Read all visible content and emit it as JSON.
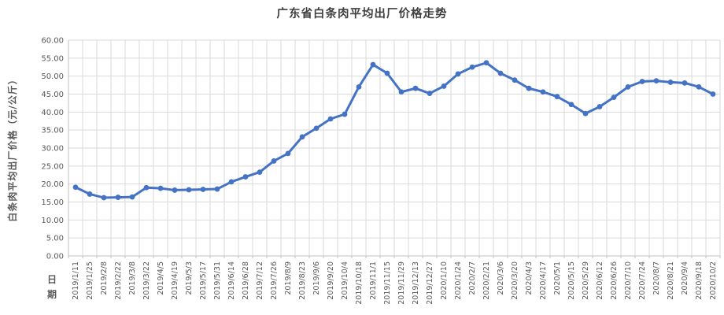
{
  "chart_data": {
    "type": "line",
    "title": "广东省白条肉平均出厂价格走势",
    "ylabel": "白条肉平均出厂价格（元/公斤）",
    "xlabel": "日期",
    "legend_position": "none",
    "grid": true,
    "ylim": [
      0,
      60
    ],
    "y_tick_step": 5,
    "y_tick_labels": [
      "0.00",
      "5.00",
      "10.00",
      "15.00",
      "20.00",
      "25.00",
      "30.00",
      "35.00",
      "40.00",
      "45.00",
      "50.00",
      "55.00",
      "60.00"
    ],
    "categories": [
      "2019/1/11",
      "2019/1/25",
      "2019/2/8",
      "2019/2/22",
      "2019/3/8",
      "2019/3/22",
      "2019/4/5",
      "2019/4/19",
      "2019/5/3",
      "2019/5/17",
      "2019/5/31",
      "2019/6/14",
      "2019/6/28",
      "2019/7/12",
      "2019/7/26",
      "2019/8/9",
      "2019/8/23",
      "2019/9/6",
      "2019/9/20",
      "2019/10/4",
      "2019/10/18",
      "2019/11/1",
      "2019/11/15",
      "2019/11/29",
      "2019/12/13",
      "2019/12/27",
      "2020/1/10",
      "2020/1/24",
      "2020/2/7",
      "2020/2/21",
      "2020/3/6",
      "2020/3/20",
      "2020/4/3",
      "2020/4/17",
      "2020/5/1",
      "2020/5/15",
      "2020/5/29",
      "2020/6/12",
      "2020/6/26",
      "2020/7/10",
      "2020/7/24",
      "2020/8/7",
      "2020/8/21",
      "2020/9/4",
      "2020/9/18",
      "2020/10/2"
    ],
    "values": [
      19.1,
      17.2,
      16.2,
      16.3,
      16.4,
      19.0,
      18.8,
      18.3,
      18.4,
      18.5,
      18.6,
      20.6,
      22.0,
      23.3,
      26.4,
      28.5,
      33.1,
      35.5,
      38.1,
      39.4,
      47.0,
      53.2,
      50.8,
      45.6,
      46.6,
      45.2,
      47.2,
      50.6,
      52.5,
      53.7,
      50.8,
      48.9,
      46.6,
      45.6,
      44.3,
      42.1,
      39.6,
      41.5,
      44.1,
      47.0,
      48.5,
      48.7,
      48.3,
      48.1,
      47.0,
      45.0
    ],
    "colors": {
      "line": "#4472C4",
      "marker": "#4472C4",
      "gridline": "#D9D9D9",
      "axis": "#BFBFBF",
      "tick_label": "#595959",
      "axis_title": "#595959",
      "title": "#3F3F3F"
    }
  }
}
